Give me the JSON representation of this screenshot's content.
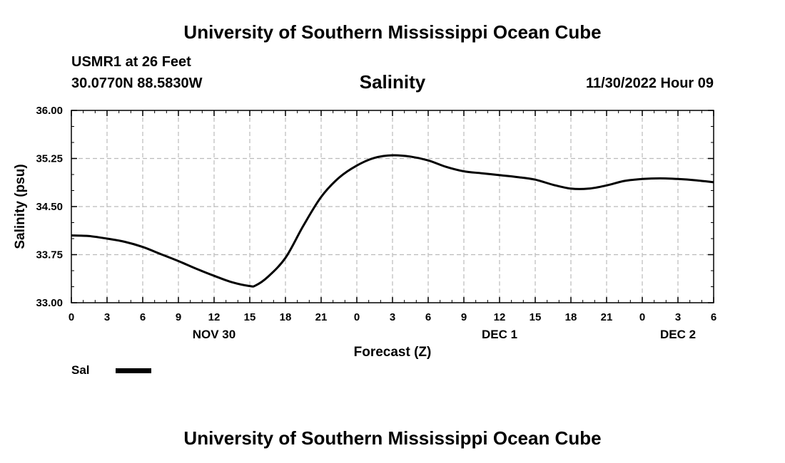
{
  "header": {
    "title": "University of Southern Mississippi Ocean Cube",
    "station": "USMR1 at 26 Feet",
    "coords": "30.0770N  88.5830W",
    "chart_title": "Salinity",
    "datetime": "11/30/2022 Hour 09"
  },
  "footer": {
    "title": "University of Southern Mississippi Ocean Cube"
  },
  "legend": {
    "label": "Sal",
    "color": "#000000"
  },
  "chart_data": {
    "type": "line",
    "title": "Salinity",
    "xlabel": "Forecast (Z)",
    "ylabel": "Salinity (psu)",
    "ylim": [
      33.0,
      36.0
    ],
    "yticks": [
      "33.00",
      "33.75",
      "34.50",
      "35.25",
      "36.00"
    ],
    "xlim": [
      0,
      54
    ],
    "xtick_labels": [
      "0",
      "3",
      "6",
      "9",
      "12",
      "15",
      "18",
      "21",
      "0",
      "3",
      "6",
      "9",
      "12",
      "15",
      "18",
      "21",
      "0",
      "3",
      "6"
    ],
    "day_labels": [
      {
        "label": "NOV 30",
        "x": 12
      },
      {
        "label": "DEC 1",
        "x": 36
      },
      {
        "label": "DEC 2",
        "x": 51
      }
    ],
    "grid": true,
    "legend_position": "bottom-left",
    "series": [
      {
        "name": "Sal",
        "color": "#000000",
        "x": [
          0,
          1.5,
          3,
          4.5,
          6,
          7.5,
          9,
          10.5,
          12,
          13.5,
          15,
          15.5,
          16.5,
          18,
          19.5,
          21,
          22.5,
          24,
          25.5,
          27,
          28.5,
          30,
          31.5,
          33,
          34.5,
          36,
          37.5,
          39,
          40.5,
          42,
          43.5,
          45,
          46.5,
          48,
          49.5,
          51,
          52.5,
          54
        ],
        "y": [
          34.05,
          34.04,
          34.0,
          33.95,
          33.87,
          33.76,
          33.65,
          33.53,
          33.42,
          33.32,
          33.26,
          33.27,
          33.4,
          33.7,
          34.2,
          34.65,
          34.95,
          35.14,
          35.26,
          35.3,
          35.28,
          35.22,
          35.12,
          35.05,
          35.02,
          34.99,
          34.96,
          34.92,
          34.84,
          34.78,
          34.78,
          34.83,
          34.9,
          34.93,
          34.94,
          34.93,
          34.91,
          34.88
        ]
      }
    ]
  }
}
